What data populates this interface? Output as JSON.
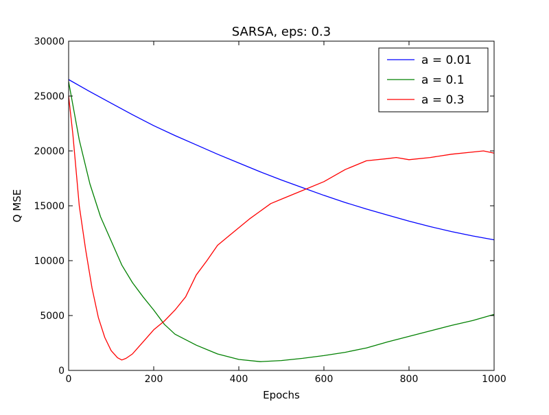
{
  "chart_data": {
    "type": "line",
    "title": "SARSA, eps: 0.3",
    "xlabel": "Epochs",
    "ylabel": "Q MSE",
    "xlim": [
      0,
      1000
    ],
    "ylim": [
      0,
      30000
    ],
    "xticks": [
      0,
      200,
      400,
      600,
      800,
      1000
    ],
    "yticks": [
      0,
      5000,
      10000,
      15000,
      20000,
      25000,
      30000
    ],
    "grid": false,
    "legend_position": "top-right",
    "series": [
      {
        "name": "a = 0.01",
        "color": "#0000ff",
        "x": [
          0,
          50,
          100,
          150,
          200,
          250,
          300,
          350,
          400,
          450,
          500,
          550,
          600,
          650,
          700,
          750,
          800,
          850,
          900,
          950,
          1000
        ],
        "y": [
          26500,
          25400,
          24350,
          23300,
          22300,
          21400,
          20550,
          19700,
          18900,
          18100,
          17350,
          16650,
          15950,
          15300,
          14700,
          14150,
          13600,
          13100,
          12650,
          12250,
          11900
        ]
      },
      {
        "name": "a = 0.1",
        "color": "#008000",
        "x": [
          0,
          25,
          50,
          75,
          100,
          125,
          150,
          175,
          200,
          225,
          250,
          275,
          300,
          350,
          400,
          450,
          500,
          550,
          600,
          650,
          700,
          750,
          800,
          850,
          900,
          950,
          1000
        ],
        "y": [
          26300,
          21000,
          17000,
          14000,
          11800,
          9600,
          8000,
          6700,
          5500,
          4200,
          3300,
          2800,
          2300,
          1500,
          1000,
          800,
          900,
          1100,
          1350,
          1650,
          2050,
          2600,
          3100,
          3600,
          4100,
          4550,
          5100
        ]
      },
      {
        "name": "a = 0.3",
        "color": "#ff0000",
        "x": [
          0,
          10,
          25,
          40,
          55,
          70,
          85,
          100,
          115,
          125,
          135,
          150,
          175,
          200,
          225,
          250,
          275,
          300,
          325,
          350,
          375,
          400,
          425,
          450,
          475,
          500,
          550,
          600,
          650,
          700,
          750,
          770,
          800,
          850,
          900,
          950,
          975,
          1000
        ],
        "y": [
          25000,
          21500,
          15000,
          11000,
          7500,
          4800,
          3000,
          1800,
          1150,
          950,
          1100,
          1500,
          2600,
          3700,
          4500,
          5500,
          6700,
          8700,
          10000,
          11400,
          12200,
          13000,
          13800,
          14500,
          15200,
          15600,
          16400,
          17200,
          18300,
          19100,
          19300,
          19400,
          19200,
          19400,
          19700,
          19900,
          20000,
          19800
        ]
      }
    ]
  }
}
